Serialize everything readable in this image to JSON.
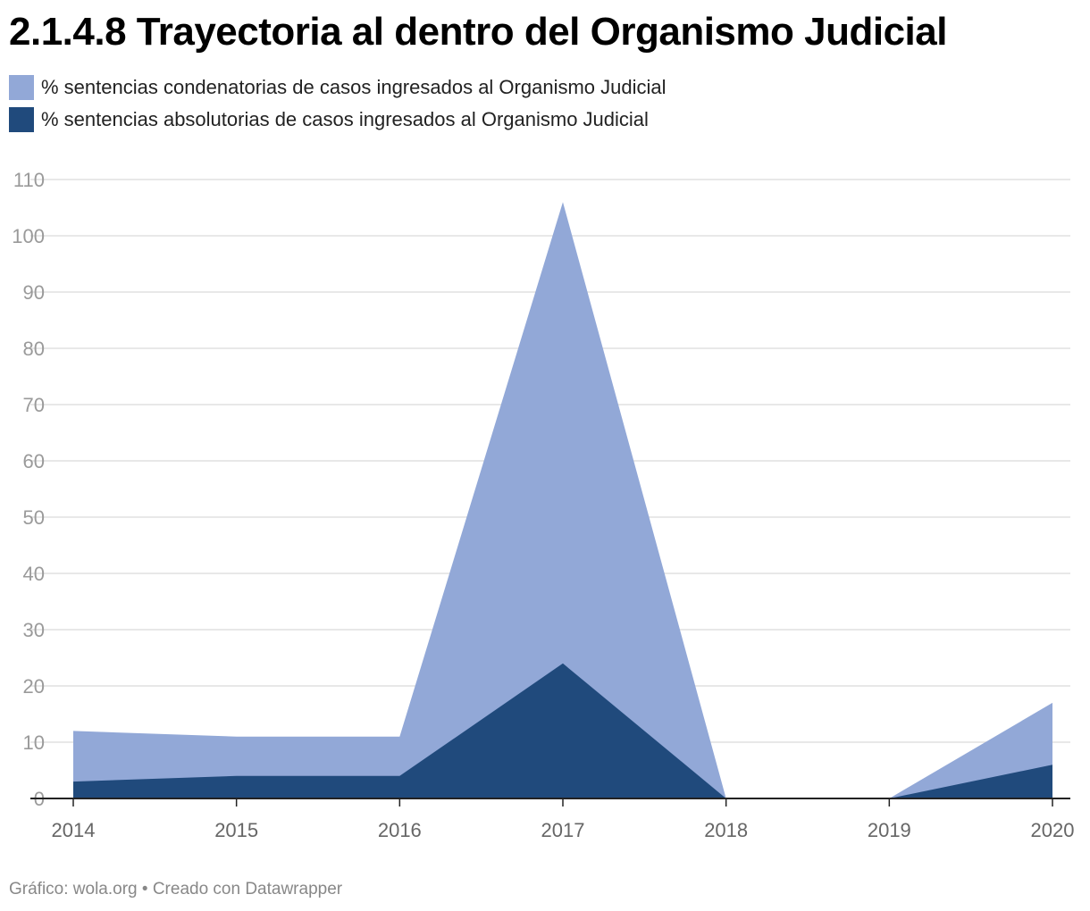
{
  "title": "2.1.4.8 Trayectoria al dentro del Organismo Judicial",
  "footer": "Gráfico: wola.org • Creado con Datawrapper",
  "chart_data": {
    "type": "area",
    "title": "2.1.4.8 Trayectoria al dentro del Organismo Judicial",
    "x": [
      "2014",
      "2015",
      "2016",
      "2017",
      "2018",
      "2019",
      "2020"
    ],
    "series": [
      {
        "name": "% sentencias condenatorias de casos ingresados al Organismo Judicial",
        "color": "#92a8d7",
        "values": [
          12,
          11,
          11,
          106,
          0,
          0,
          17
        ]
      },
      {
        "name": "% sentencias absolutorias de casos ingresados al Organismo Judicial",
        "color": "#204a7c",
        "values": [
          3,
          4,
          4,
          24,
          0,
          0,
          6
        ]
      }
    ],
    "ylim": [
      0,
      110
    ],
    "yticks": [
      0,
      10,
      20,
      30,
      40,
      50,
      60,
      70,
      80,
      90,
      100,
      110
    ],
    "xlabel": "",
    "ylabel": "",
    "grid": true,
    "legend_position": "top-left"
  }
}
